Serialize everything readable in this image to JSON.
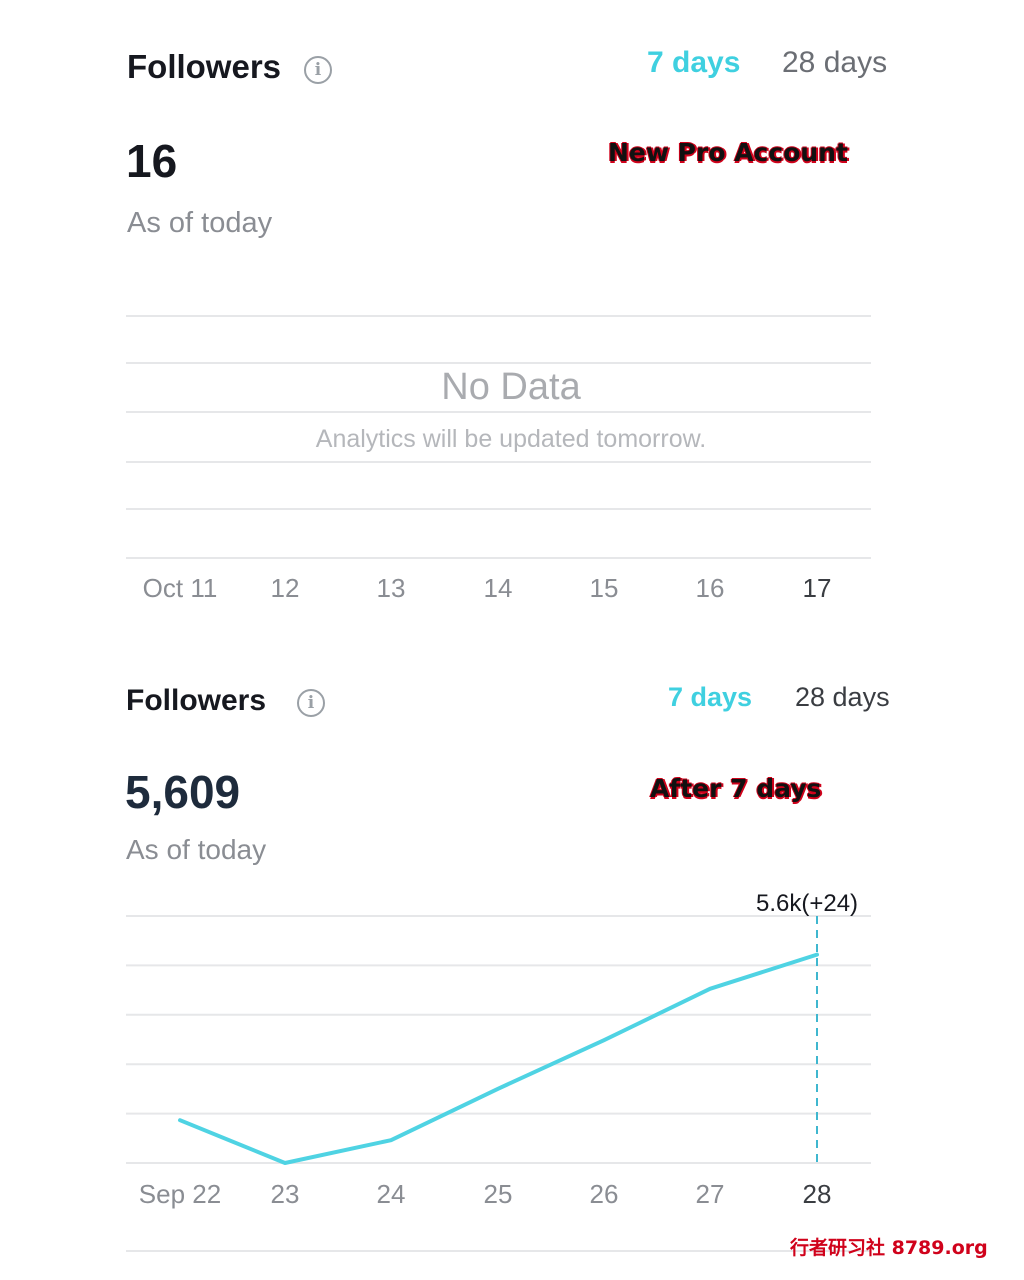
{
  "panel1": {
    "title": "Followers",
    "info_icon": "info-icon",
    "tabs": [
      {
        "label": "7 days",
        "active": true
      },
      {
        "label": "28 days",
        "active": false
      }
    ],
    "count": "16",
    "count_subtitle": "As of today",
    "overlay_label": "New Pro Account",
    "empty_title": "No Data",
    "empty_message": "Analytics will be updated tomorrow.",
    "x_ticks": [
      "Oct 11",
      "12",
      "13",
      "14",
      "15",
      "16",
      "17"
    ]
  },
  "panel2": {
    "title": "Followers",
    "info_icon": "info-icon",
    "tabs": [
      {
        "label": "7 days",
        "active": true
      },
      {
        "label": "28 days",
        "active": false
      }
    ],
    "count": "5,609",
    "count_subtitle": "As of today",
    "overlay_label": "After 7 days",
    "tooltip": "5.6k(+24)"
  },
  "chart_data": {
    "type": "line",
    "categories": [
      "Sep 22",
      "23",
      "24",
      "25",
      "26",
      "27",
      "28"
    ],
    "series": [
      {
        "values": [
          5562,
          5547,
          5555,
          5573,
          5590,
          5608,
          5620
        ]
      }
    ],
    "ylim": [
      5547,
      5630
    ],
    "grid": true,
    "highlight_index": 6,
    "line_color": "#4fd3e3"
  },
  "watermark": "行者研习社  8789.org",
  "colors": {
    "accent": "#3fd0e0",
    "text": "#16181f",
    "muted": "#8a8d93",
    "grid": "#e6e7e9"
  }
}
